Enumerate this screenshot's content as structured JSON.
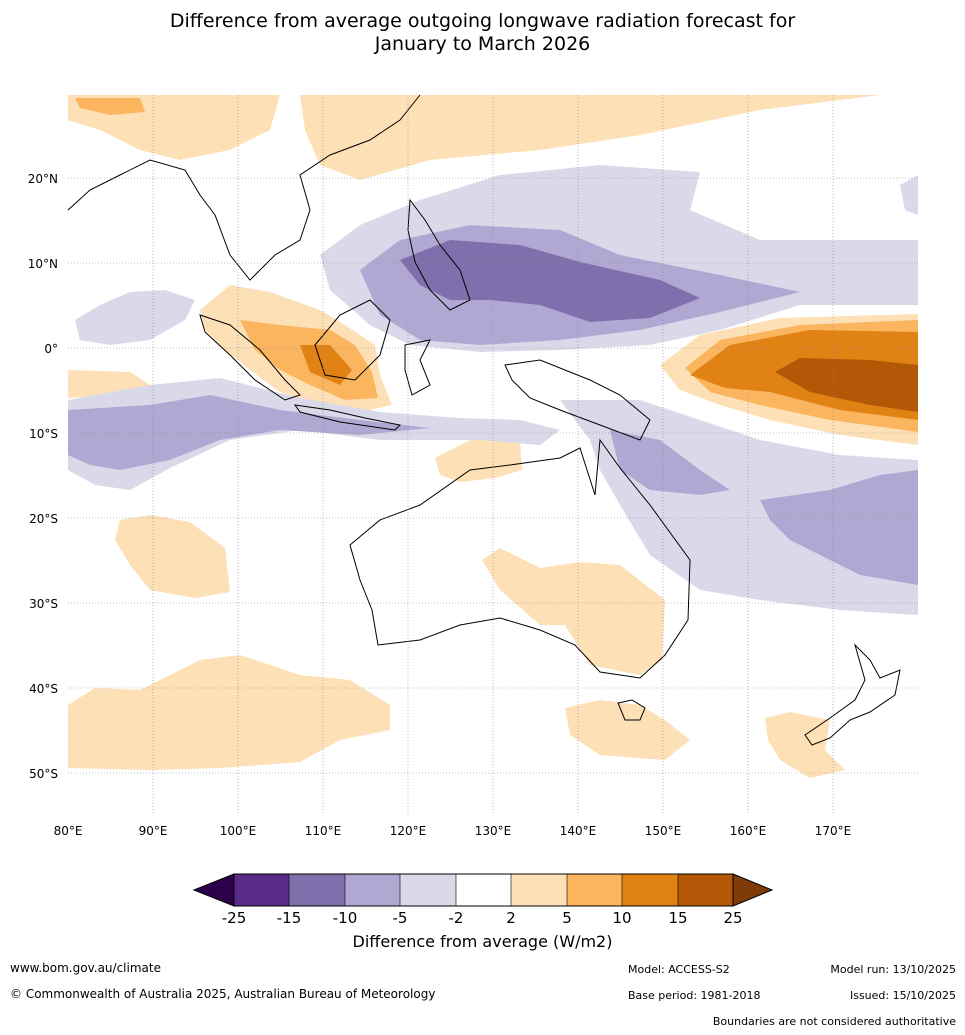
{
  "title": {
    "line1": "Difference from average outgoing longwave radiation forecast for",
    "line2": "January to March 2026"
  },
  "map": {
    "lon_ticks": [
      "80°E",
      "90°E",
      "100°E",
      "110°E",
      "120°E",
      "130°E",
      "140°E",
      "150°E",
      "160°E",
      "170°E"
    ],
    "lat_ticks": [
      "20°N",
      "10°N",
      "0°",
      "10°S",
      "20°S",
      "30°S",
      "40°S",
      "50°S"
    ],
    "lon_range": [
      80,
      180
    ],
    "lat_range": [
      -55,
      30
    ]
  },
  "colorbar": {
    "tick_labels": [
      "-25",
      "-15",
      "-10",
      "-5",
      "-2",
      "2",
      "5",
      "10",
      "15",
      "25"
    ],
    "bin_colors": [
      "#2d004b",
      "#5a2a8a",
      "#7f70ad",
      "#b0a8d2",
      "#d9d9ea",
      "#ffffff",
      "#fde0b6",
      "#fbb55f",
      "#e08214",
      "#b35806",
      "#7f3b08"
    ],
    "label": "Difference from average (W/m2)"
  },
  "footer": {
    "website": "www.bom.gov.au/climate",
    "copyright": "© Commonwealth of Australia 2025, Australian Bureau of Meteorology",
    "model": "Model: ACCESS-S2",
    "base_period": "Base period: 1981-2018",
    "model_run": "Model run: 13/10/2025",
    "issued": "Issued: 15/10/2025",
    "disclaimer": "Boundaries are not considered authoritative"
  }
}
